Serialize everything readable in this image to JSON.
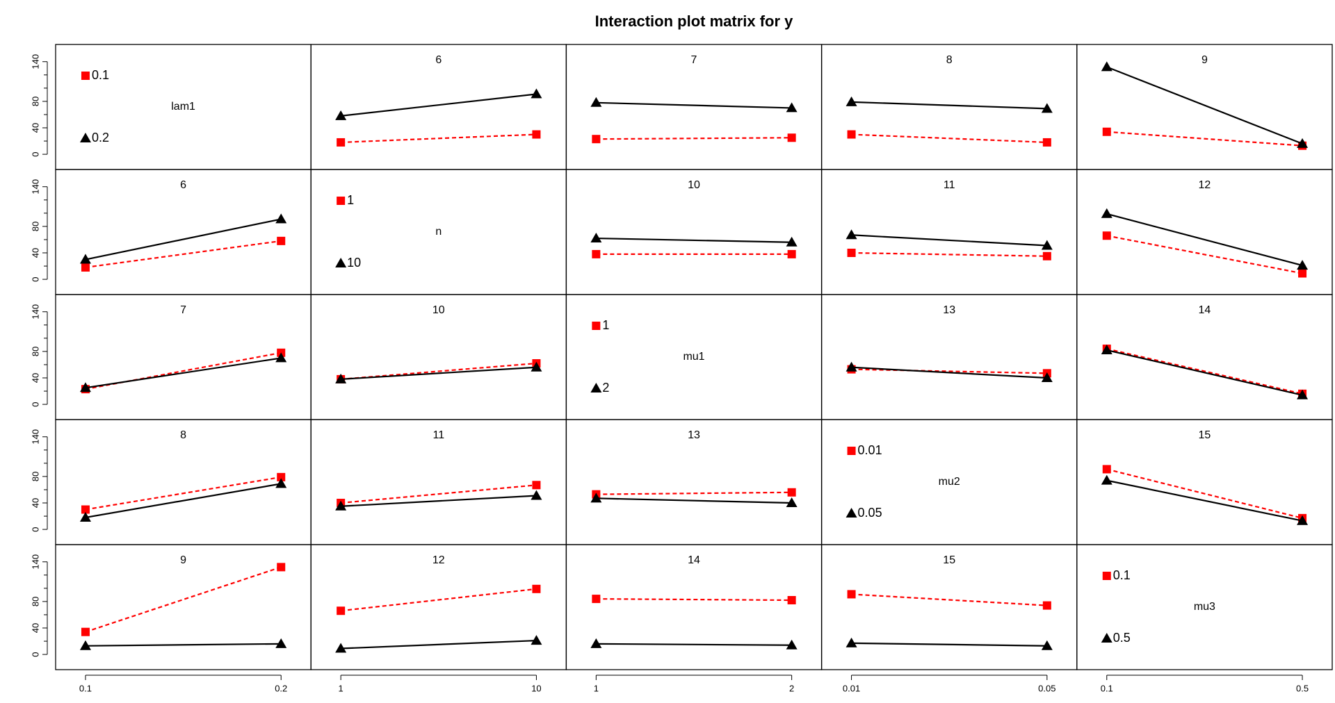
{
  "chart_data": {
    "type": "line",
    "title": "Interaction plot matrix for y",
    "ylim": [
      -23,
      166
    ],
    "yticks": [
      0,
      40,
      80,
      140
    ],
    "yminor": [
      20,
      60,
      100,
      120
    ],
    "factors": [
      {
        "name": "lam1",
        "levels": [
          "0.1",
          "0.2"
        ]
      },
      {
        "name": "n",
        "levels": [
          "1",
          "10"
        ]
      },
      {
        "name": "mu1",
        "levels": [
          "1",
          "2"
        ]
      },
      {
        "name": "mu2",
        "levels": [
          "0.01",
          "0.05"
        ]
      },
      {
        "name": "mu3",
        "levels": [
          "0.1",
          "0.5"
        ]
      }
    ],
    "styles": [
      {
        "color": "#ff0000",
        "dash": true,
        "marker": "square"
      },
      {
        "color": "#000000",
        "dash": false,
        "marker": "triangle"
      }
    ],
    "factor_color": "#0000cc",
    "panels": [
      [
        null,
        {
          "label": 6,
          "series": [
            {
              "values": [
                18,
                30
              ]
            },
            {
              "values": [
                58,
                91
              ]
            }
          ]
        },
        {
          "label": 7,
          "series": [
            {
              "values": [
                23,
                25
              ]
            },
            {
              "values": [
                78,
                70
              ]
            }
          ]
        },
        {
          "label": 8,
          "series": [
            {
              "values": [
                30,
                18
              ]
            },
            {
              "values": [
                79,
                69
              ]
            }
          ]
        },
        {
          "label": 9,
          "series": [
            {
              "values": [
                34,
                13
              ]
            },
            {
              "values": [
                132,
                16
              ]
            }
          ]
        }
      ],
      [
        {
          "label": 6,
          "series": [
            {
              "values": [
                18,
                58
              ]
            },
            {
              "values": [
                30,
                91
              ]
            }
          ]
        },
        null,
        {
          "label": 10,
          "series": [
            {
              "values": [
                38,
                38
              ]
            },
            {
              "values": [
                62,
                56
              ]
            }
          ]
        },
        {
          "label": 11,
          "series": [
            {
              "values": [
                40,
                35
              ]
            },
            {
              "values": [
                67,
                51
              ]
            }
          ]
        },
        {
          "label": 12,
          "series": [
            {
              "values": [
                66,
                9
              ]
            },
            {
              "values": [
                99,
                21
              ]
            }
          ]
        }
      ],
      [
        {
          "label": 7,
          "series": [
            {
              "values": [
                23,
                78
              ]
            },
            {
              "values": [
                25,
                70
              ]
            }
          ]
        },
        {
          "label": 10,
          "series": [
            {
              "values": [
                38,
                62
              ]
            },
            {
              "values": [
                38,
                56
              ]
            }
          ]
        },
        null,
        {
          "label": 13,
          "series": [
            {
              "values": [
                53,
                47
              ]
            },
            {
              "values": [
                56,
                40
              ]
            }
          ]
        },
        {
          "label": 14,
          "series": [
            {
              "values": [
                84,
                16
              ]
            },
            {
              "values": [
                82,
                14
              ]
            }
          ]
        }
      ],
      [
        {
          "label": 8,
          "series": [
            {
              "values": [
                30,
                79
              ]
            },
            {
              "values": [
                18,
                69
              ]
            }
          ]
        },
        {
          "label": 11,
          "series": [
            {
              "values": [
                40,
                67
              ]
            },
            {
              "values": [
                35,
                51
              ]
            }
          ]
        },
        {
          "label": 13,
          "series": [
            {
              "values": [
                53,
                56
              ]
            },
            {
              "values": [
                47,
                40
              ]
            }
          ]
        },
        null,
        {
          "label": 15,
          "series": [
            {
              "values": [
                91,
                17
              ]
            },
            {
              "values": [
                74,
                13
              ]
            }
          ]
        }
      ],
      [
        {
          "label": 9,
          "series": [
            {
              "values": [
                34,
                132
              ]
            },
            {
              "values": [
                13,
                16
              ]
            }
          ]
        },
        {
          "label": 12,
          "series": [
            {
              "values": [
                66,
                99
              ]
            },
            {
              "values": [
                9,
                21
              ]
            }
          ]
        },
        {
          "label": 14,
          "series": [
            {
              "values": [
                84,
                82
              ]
            },
            {
              "values": [
                16,
                14
              ]
            }
          ]
        },
        {
          "label": 15,
          "series": [
            {
              "values": [
                91,
                74
              ]
            },
            {
              "values": [
                17,
                13
              ]
            }
          ]
        },
        null
      ]
    ]
  }
}
